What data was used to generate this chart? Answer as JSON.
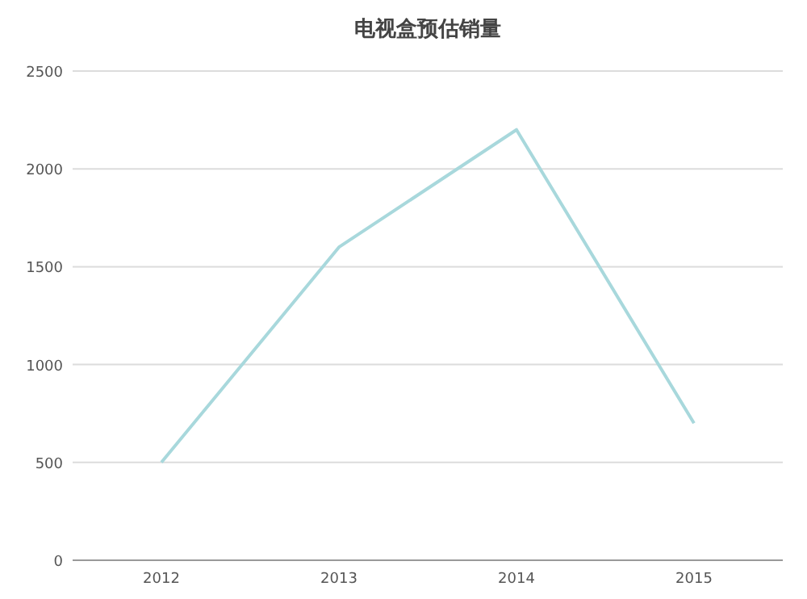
{
  "chart_data": {
    "type": "line",
    "title": "电视盒预估销量",
    "categories": [
      "2012",
      "2013",
      "2014",
      "2015"
    ],
    "series": [
      {
        "color": "#a8d8dc",
        "values": [
          500,
          1600,
          2200,
          700
        ]
      }
    ],
    "ylim": [
      0,
      2500
    ],
    "yticks": [
      0,
      500,
      1000,
      1500,
      2000,
      2500
    ],
    "grid": "y",
    "marker": "none",
    "line_style": "solid"
  }
}
